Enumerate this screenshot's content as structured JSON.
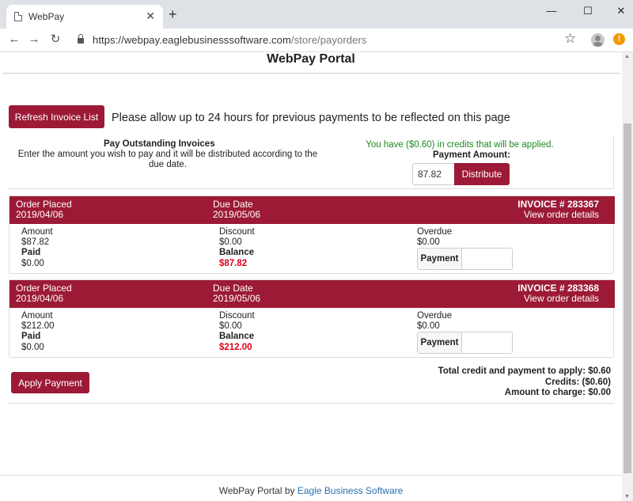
{
  "browser": {
    "tab_title": "WebPay",
    "tab_close": "✕",
    "new_tab": "+",
    "window_minimize": "—",
    "window_maximize": "☐",
    "window_close": "✕",
    "url_host": "https://webpay.eaglebusinesssoftware.com",
    "url_path": "/store/payorders",
    "back_icon": "←",
    "forward_icon": "→",
    "reload_icon": "↻",
    "bookmark_icon": "☆",
    "alert_icon": "!",
    "scroll_up": "▲",
    "scroll_down": "▼"
  },
  "page": {
    "title": "WebPay Portal",
    "refresh_button": "Refresh Invoice List",
    "notice": "Please allow up to 24 hours for previous payments to be reflected on this page"
  },
  "pay_outstanding": {
    "heading": "Pay Outstanding Invoices",
    "description": "Enter the amount you wish to pay and it will be distributed according to the due date.",
    "credit_note": "You have ($0.60) in credits that will be applied.",
    "payment_amount_label": "Payment Amount:",
    "payment_amount_value": "87.82",
    "distribute_button": "Distribute"
  },
  "invoices": [
    {
      "order_placed_label": "Order Placed",
      "order_placed": "2019/04/06",
      "due_date_label": "Due Date",
      "due_date": "2019/05/06",
      "invoice_number": "INVOICE # 283367",
      "view_details": "View order details",
      "amount_label": "Amount",
      "amount": "$87.82",
      "paid_label": "Paid",
      "paid": "$0.00",
      "discount_label": "Discount",
      "discount": "$0.00",
      "balance_label": "Balance",
      "balance": "$87.82",
      "overdue_label": "Overdue",
      "overdue": "$0.00",
      "payment_label": "Payment",
      "payment_value": ""
    },
    {
      "order_placed_label": "Order Placed",
      "order_placed": "2019/04/06",
      "due_date_label": "Due Date",
      "due_date": "2019/05/06",
      "invoice_number": "INVOICE # 283368",
      "view_details": "View order details",
      "amount_label": "Amount",
      "amount": "$212.00",
      "paid_label": "Paid",
      "paid": "$0.00",
      "discount_label": "Discount",
      "discount": "$0.00",
      "balance_label": "Balance",
      "balance": "$212.00",
      "overdue_label": "Overdue",
      "overdue": "$0.00",
      "payment_label": "Payment",
      "payment_value": ""
    }
  ],
  "summary": {
    "apply_button": "Apply Payment",
    "total_line": "Total credit and payment to apply: $0.60",
    "credits_line": "Credits: ($0.60)",
    "charge_line": "Amount to charge: $0.00"
  },
  "footer": {
    "prefix": "WebPay Portal by ",
    "link": "Eagle Business Software"
  },
  "colors": {
    "brand": "#9c1a36",
    "credit_green": "#1e8a1e",
    "balance_red": "#e0001a",
    "link_blue": "#2a6fb0"
  }
}
